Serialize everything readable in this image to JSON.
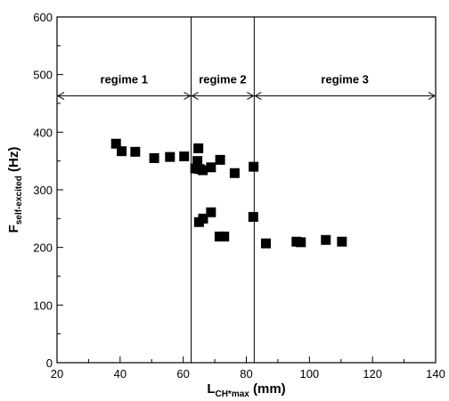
{
  "chart_data": {
    "type": "scatter",
    "title": "",
    "xlabel": {
      "main": "L",
      "sub": "CH*max",
      "unit": " (mm)"
    },
    "ylabel": {
      "main": "F",
      "sub": "self-excited",
      "unit": " (Hz)"
    },
    "xlim": [
      20,
      140
    ],
    "ylim": [
      0,
      600
    ],
    "x_ticks": [
      20,
      40,
      60,
      80,
      100,
      120,
      140
    ],
    "y_ticks": [
      0,
      100,
      200,
      300,
      400,
      500,
      600
    ],
    "grid": false,
    "legend": "none",
    "marker": "square",
    "marker_color": "#000000",
    "regime_boundaries": [
      62.5,
      82.5
    ],
    "regime_arrow_y": 463,
    "regimes": [
      {
        "label": "regime 1",
        "from": 20,
        "to": 62.5
      },
      {
        "label": "regime 2",
        "from": 62.5,
        "to": 82.5
      },
      {
        "label": "regime 3",
        "from": 82.5,
        "to": 140
      }
    ],
    "points": [
      {
        "x": 38.7,
        "y": 380
      },
      {
        "x": 40.5,
        "y": 367
      },
      {
        "x": 44.8,
        "y": 366
      },
      {
        "x": 50.8,
        "y": 355
      },
      {
        "x": 55.8,
        "y": 357
      },
      {
        "x": 60.3,
        "y": 358
      },
      {
        "x": 63.8,
        "y": 337
      },
      {
        "x": 64.5,
        "y": 350
      },
      {
        "x": 64.8,
        "y": 372
      },
      {
        "x": 65.2,
        "y": 336
      },
      {
        "x": 66.2,
        "y": 334
      },
      {
        "x": 68.8,
        "y": 339
      },
      {
        "x": 71.7,
        "y": 352
      },
      {
        "x": 76.3,
        "y": 329
      },
      {
        "x": 82.3,
        "y": 340
      },
      {
        "x": 65.0,
        "y": 244
      },
      {
        "x": 66.3,
        "y": 250
      },
      {
        "x": 68.8,
        "y": 261
      },
      {
        "x": 71.5,
        "y": 219
      },
      {
        "x": 73.0,
        "y": 219
      },
      {
        "x": 82.2,
        "y": 253
      },
      {
        "x": 86.2,
        "y": 207
      },
      {
        "x": 95.9,
        "y": 210
      },
      {
        "x": 97.3,
        "y": 209
      },
      {
        "x": 105.2,
        "y": 213
      },
      {
        "x": 110.3,
        "y": 210
      }
    ]
  }
}
